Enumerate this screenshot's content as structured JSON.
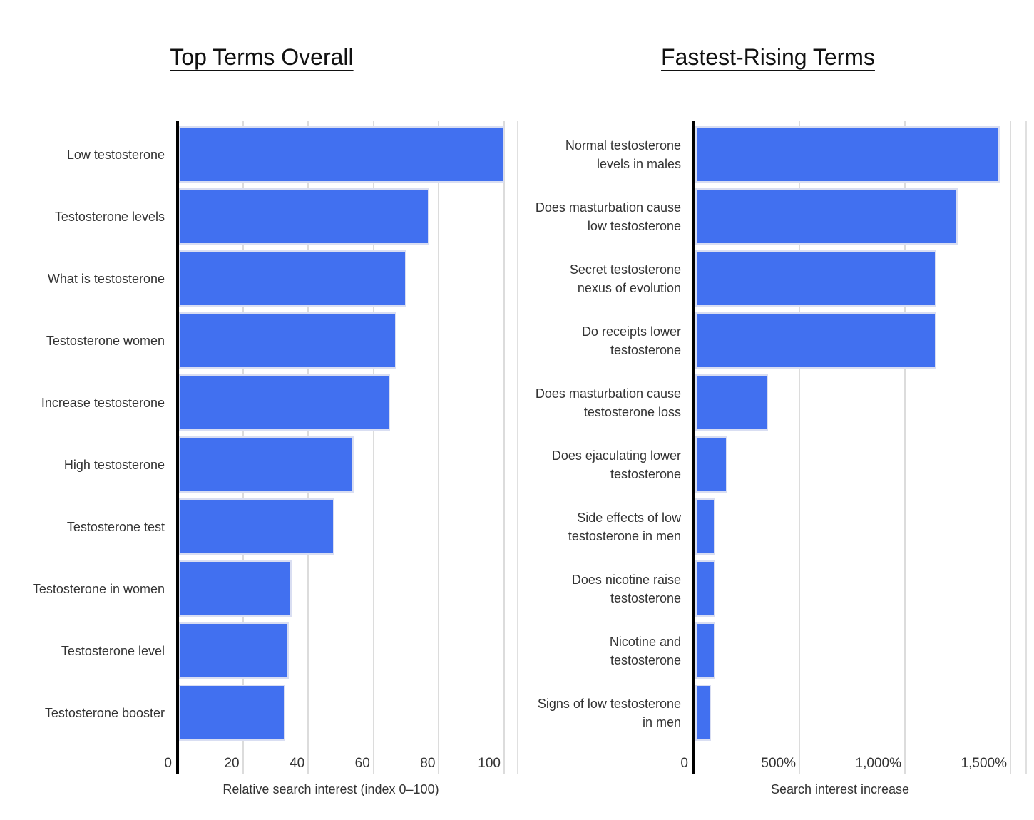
{
  "page": {
    "background": "#ffffff"
  },
  "chart_data": [
    {
      "type": "bar",
      "orientation": "horizontal",
      "title": "Top Terms Overall",
      "xlabel": "Relative search interest (index 0–100)",
      "categories": [
        "Low testosterone",
        "Testosterone levels",
        "What is testosterone",
        "Testosterone women",
        "Increase testosterone",
        "High testosterone",
        "Testosterone test",
        "Testosterone in women",
        "Testosterone level",
        "Testosterone booster"
      ],
      "values": [
        100,
        77,
        70,
        67,
        65,
        54,
        48,
        35,
        34,
        33
      ],
      "xlim": [
        0,
        104
      ],
      "x_ticks": [
        {
          "value": 0,
          "label": "0"
        },
        {
          "value": 20,
          "label": "20"
        },
        {
          "value": 40,
          "label": "40"
        },
        {
          "value": 60,
          "label": "60"
        },
        {
          "value": 80,
          "label": "80"
        },
        {
          "value": 100,
          "label": "100"
        }
      ],
      "grid": true,
      "legend": "none"
    },
    {
      "type": "bar",
      "orientation": "horizontal",
      "title": "Fastest-Rising Terms",
      "xlabel": "Search interest increase",
      "categories": [
        [
          "Normal testosterone",
          "levels in males"
        ],
        [
          "Does masturbation cause",
          "low testosterone"
        ],
        [
          "Secret testosterone",
          "nexus of evolution"
        ],
        [
          "Do receipts lower",
          "testosterone"
        ],
        [
          "Does masturbation cause",
          "testosterone loss"
        ],
        [
          "Does ejaculating lower",
          "testosterone"
        ],
        [
          "Side effects of low",
          "testosterone in men"
        ],
        [
          "Does nicotine raise",
          "testosterone"
        ],
        [
          "Nicotine and",
          "testosterone"
        ],
        [
          "Signs of low testosterone",
          "in men"
        ]
      ],
      "values": [
        1450,
        1250,
        1150,
        1150,
        350,
        160,
        100,
        100,
        100,
        80
      ],
      "xlim": [
        0,
        1578
      ],
      "x_ticks": [
        {
          "value": 0,
          "label": "0"
        },
        {
          "value": 500,
          "label": "500%"
        },
        {
          "value": 1000,
          "label": "1,000%"
        },
        {
          "value": 1500,
          "label": "1,500%"
        }
      ],
      "grid": true,
      "legend": "none"
    }
  ],
  "colors": {
    "bar": "#4170f0",
    "bar_edge": "#d9def2",
    "grid": "#dcdcdc",
    "zero_axis": "#000000",
    "text": "#333333",
    "title": "#111111"
  }
}
